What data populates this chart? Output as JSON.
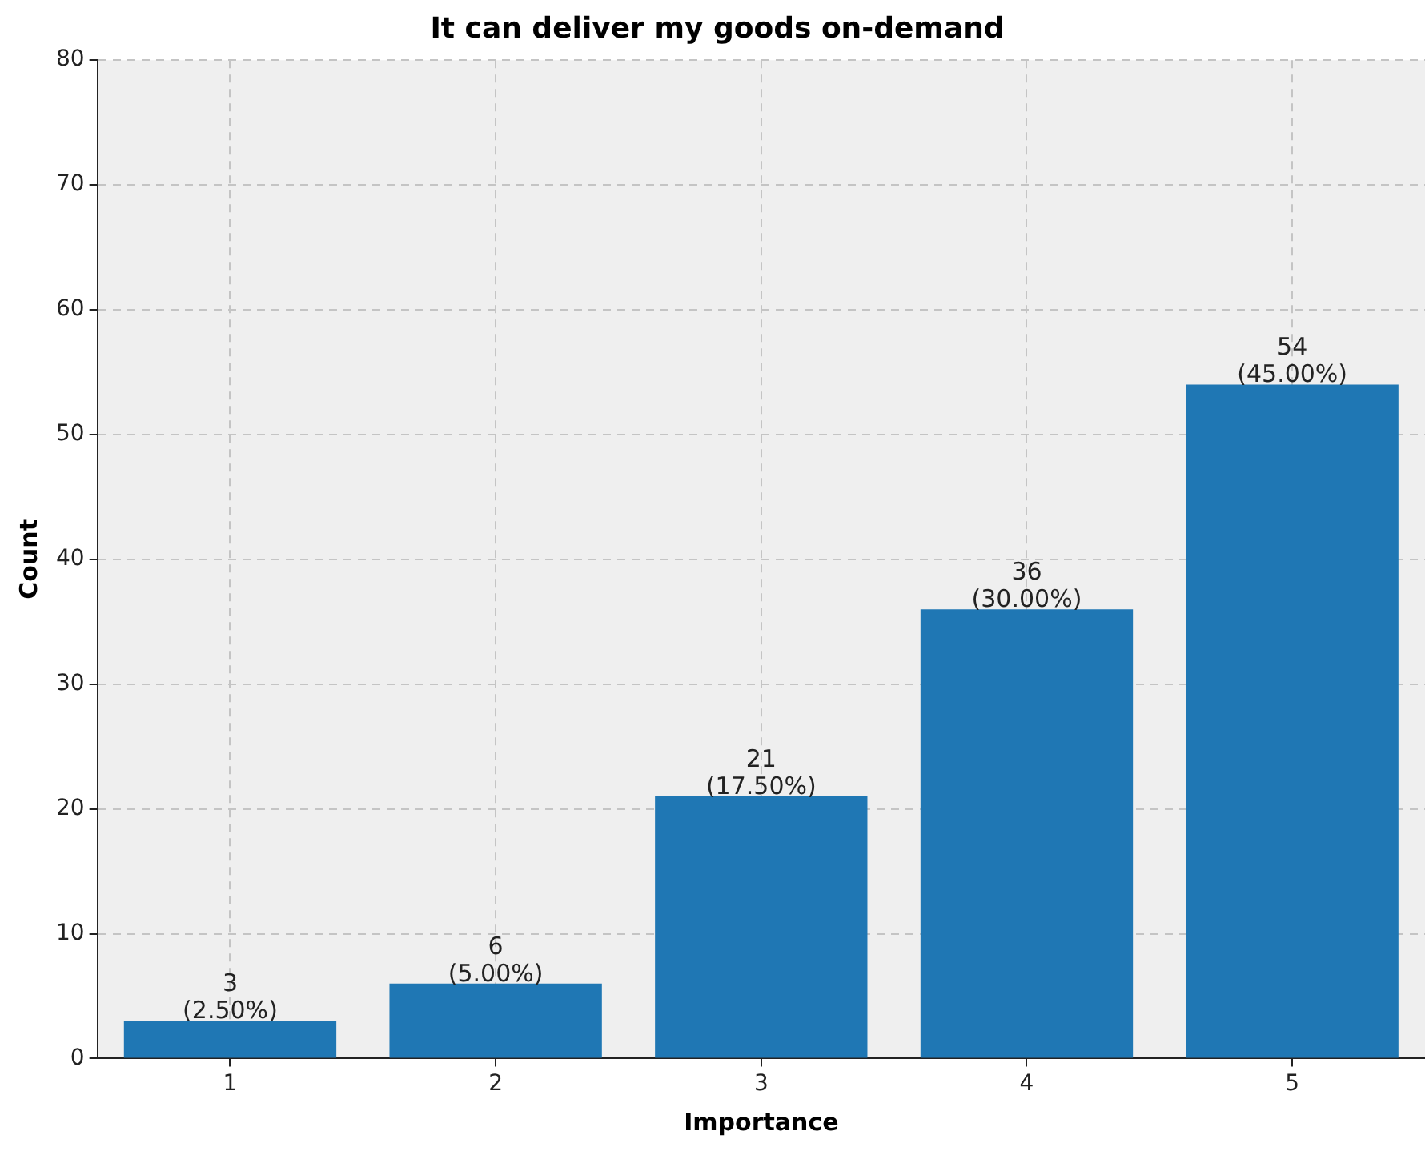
{
  "chart_data": {
    "type": "bar",
    "title": "It can deliver my goods on-demand",
    "xlabel": "Importance",
    "ylabel": "Count",
    "categories": [
      "1",
      "2",
      "3",
      "4",
      "5"
    ],
    "values": [
      3,
      6,
      21,
      36,
      54
    ],
    "value_labels": [
      "3\n(2.50%)",
      "6\n(5.00%)",
      "21\n(17.50%)",
      "36\n(30.00%)",
      "54\n(45.00%)"
    ],
    "color": "#1f77b4",
    "ylim": [
      0,
      80
    ],
    "yticks": [
      0,
      10,
      20,
      30,
      40,
      50,
      60,
      70,
      80
    ],
    "grid": true,
    "legend": false
  }
}
